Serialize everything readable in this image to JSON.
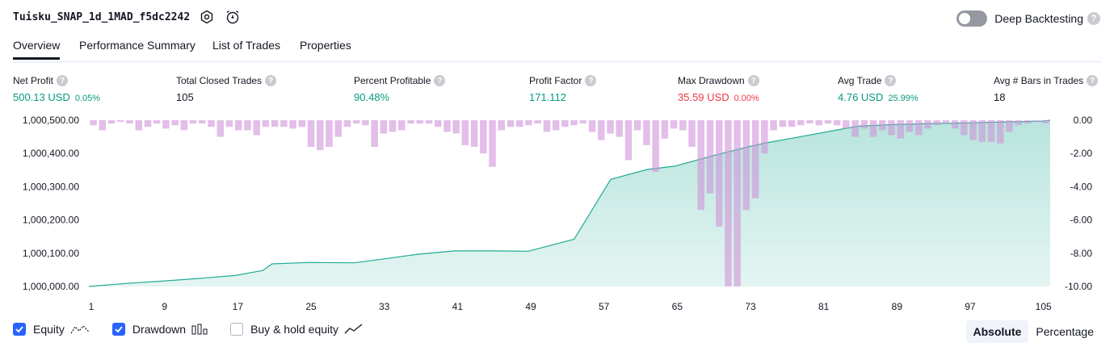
{
  "header": {
    "strategy_name": "Tuisku_SNAP_1d_1MAD_f5dc2242",
    "deep_backtesting_label": "Deep Backtesting",
    "help_glyph": "?"
  },
  "tabs": [
    "Overview",
    "Performance Summary",
    "List of Trades",
    "Properties"
  ],
  "metrics": [
    {
      "label": "Net Profit",
      "value": "500.13 USD",
      "pct": "0.05%",
      "color": "green"
    },
    {
      "label": "Total Closed Trades",
      "value": "105",
      "pct": "",
      "color": "dark"
    },
    {
      "label": "Percent Profitable",
      "value": "90.48%",
      "pct": "",
      "color": "green"
    },
    {
      "label": "Profit Factor",
      "value": "171.112",
      "pct": "",
      "color": "green"
    },
    {
      "label": "Max Drawdown",
      "value": "35.59 USD",
      "pct": "0.00%",
      "color": "red"
    },
    {
      "label": "Avg Trade",
      "value": "4.76 USD",
      "pct": "25.99%",
      "color": "green"
    },
    {
      "label": "Avg # Bars in Trades",
      "value": "18",
      "pct": "",
      "color": "dark"
    }
  ],
  "legend": {
    "equity_label": "Equity",
    "drawdown_label": "Drawdown",
    "buyhold_label": "Buy & hold equity",
    "equity_checked": true,
    "drawdown_checked": true,
    "buyhold_checked": false
  },
  "modes": {
    "absolute": "Absolute",
    "percentage": "Percentage",
    "active": "Absolute"
  },
  "colors": {
    "equity": "#22ab94",
    "drawdown": "#ce93d8",
    "accent": "#2962ff",
    "green": "#089981",
    "red": "#f23645"
  },
  "chart_data": {
    "type": "area",
    "x_ticks": [
      1,
      9,
      17,
      25,
      33,
      41,
      49,
      57,
      65,
      73,
      81,
      89,
      97,
      105
    ],
    "left_ticks": [
      "1,000,500.00",
      "1,000,400.00",
      "1,000,300.00",
      "1,000,200.00",
      "1,000,100.00",
      "1,000,000.00"
    ],
    "left_range": [
      1000000,
      1000500
    ],
    "right_ticks": [
      "0.00",
      "-2.00",
      "-4.00",
      "-6.00",
      "-8.00",
      "-10.00"
    ],
    "right_range": [
      -10,
      0
    ],
    "x_range": [
      1,
      106
    ],
    "series": [
      {
        "name": "Equity",
        "points": [
          [
            1,
            0
          ],
          [
            5,
            9
          ],
          [
            9,
            16
          ],
          [
            13,
            24
          ],
          [
            17,
            33
          ],
          [
            20,
            48
          ],
          [
            21,
            68
          ],
          [
            25,
            72
          ],
          [
            30,
            71
          ],
          [
            33,
            82
          ],
          [
            37,
            97
          ],
          [
            41,
            107
          ],
          [
            45,
            107
          ],
          [
            49,
            106
          ],
          [
            54,
            142
          ],
          [
            58,
            322
          ],
          [
            62,
            352
          ],
          [
            65,
            362
          ],
          [
            69,
            392
          ],
          [
            73,
            420
          ],
          [
            75,
            432
          ],
          [
            79,
            452
          ],
          [
            83,
            472
          ],
          [
            85,
            482
          ],
          [
            89,
            487
          ],
          [
            93,
            490
          ],
          [
            97,
            492
          ],
          [
            101,
            495
          ],
          [
            105,
            497
          ],
          [
            106,
            500
          ]
        ]
      },
      {
        "name": "Drawdown",
        "bars": [
          -0.3,
          -0.6,
          -0.2,
          -0.1,
          -0.2,
          -0.6,
          -0.4,
          -0.2,
          -0.5,
          -0.3,
          -0.6,
          -0.2,
          -0.2,
          -0.4,
          -1.0,
          -0.4,
          -0.6,
          -0.6,
          -0.9,
          -0.4,
          -0.4,
          -0.4,
          -0.5,
          -0.4,
          -1.6,
          -1.8,
          -1.6,
          -1.0,
          -0.4,
          -0.2,
          -0.3,
          -1.6,
          -0.8,
          -0.7,
          -0.6,
          -0.2,
          -0.2,
          -0.2,
          -0.4,
          -0.7,
          -0.8,
          -1.5,
          -1.6,
          -2.0,
          -2.8,
          -0.6,
          -0.4,
          -0.4,
          -0.3,
          -0.2,
          -0.7,
          -0.6,
          -0.4,
          -0.3,
          -0.2,
          -0.7,
          -1.2,
          -0.8,
          -1.0,
          -2.4,
          -0.6,
          -1.5,
          -3.1,
          -1.1,
          -0.5,
          -0.6,
          -1.6,
          -5.4,
          -4.4,
          -6.4,
          -10.0,
          -10.0,
          -5.4,
          -4.7,
          -2.0,
          -0.6,
          -0.4,
          -0.4,
          -0.3,
          -0.2,
          -0.3,
          -0.2,
          -0.3,
          -0.5,
          -1.0,
          -0.5,
          -1.0,
          -0.6,
          -0.9,
          -1.1,
          -0.7,
          -0.9,
          -0.5,
          -0.3,
          -0.2,
          -0.5,
          -0.9,
          -1.2,
          -1.3,
          -1.3,
          -1.4,
          -0.7,
          -0.3,
          -0.2,
          -0.1,
          -0.2
        ]
      }
    ]
  }
}
